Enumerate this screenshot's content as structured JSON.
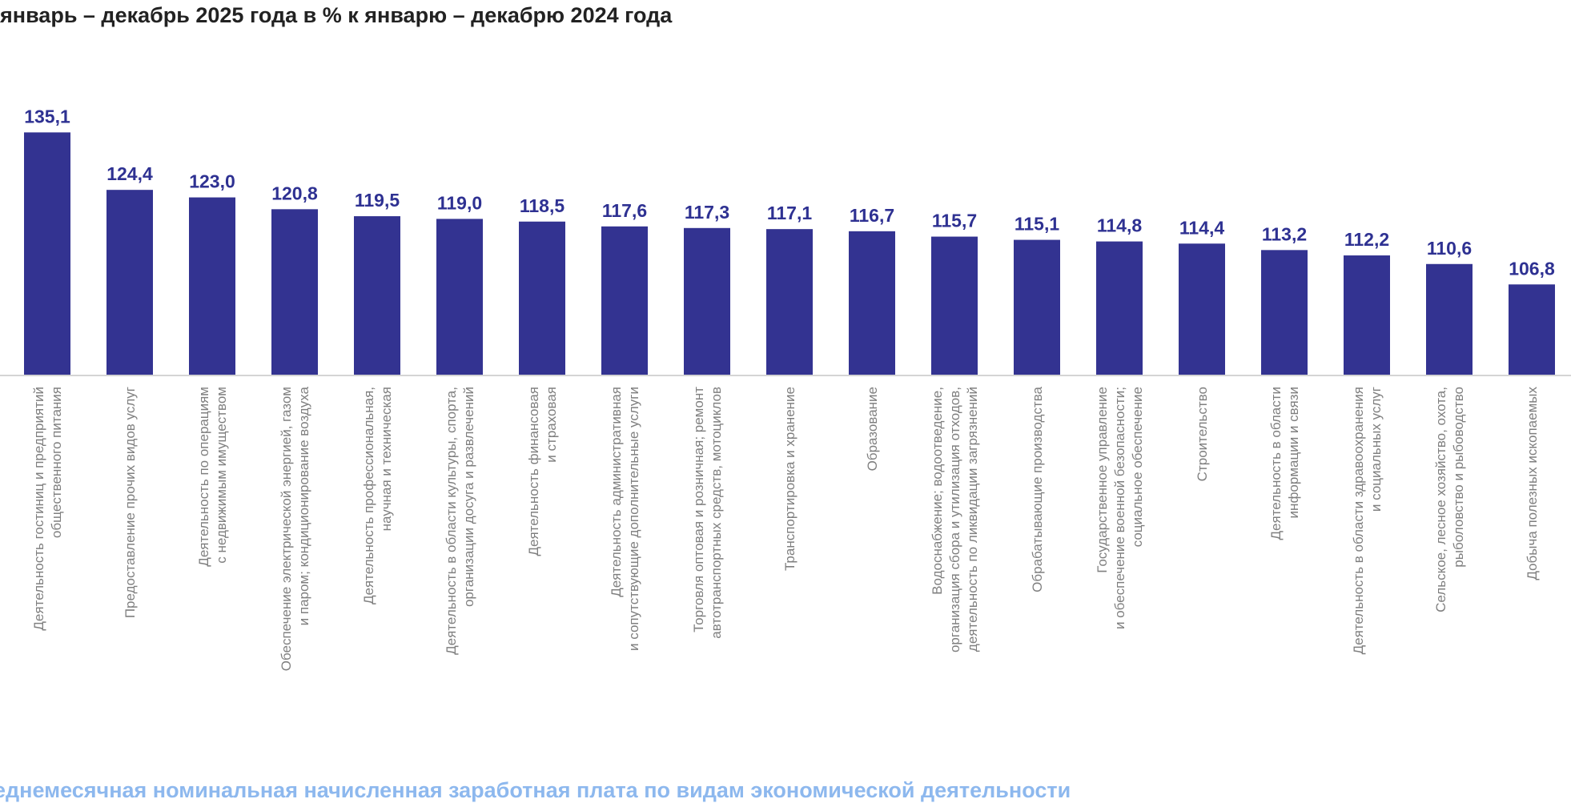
{
  "chart_data": {
    "type": "bar",
    "title": "январь – декабрь 2025 года в % к январю – декабрю 2024 года",
    "xlabel": "",
    "ylabel": "",
    "ylim": [
      90,
      140
    ],
    "grid": false,
    "bar_color": "#333391",
    "label_color": "#2e3192",
    "categories": [
      [
        "Деятельность гостиниц и предприятий",
        "общественного питания"
      ],
      [
        "Предоставление прочих видов услуг"
      ],
      [
        "Деятельность по операциям",
        "с недвижимым имуществом"
      ],
      [
        "Обеспечение электрической энергией, газом",
        "и паром; кондиционирование воздуха"
      ],
      [
        "Деятельность профессиональная,",
        "научная и техническая"
      ],
      [
        "Деятельность в области культуры, спорта,",
        "организации досуга и развлечений"
      ],
      [
        "Деятельность финансовая",
        "и страховая"
      ],
      [
        "Деятельность административная",
        "и сопутствующие дополнительные услуги"
      ],
      [
        "Торговля оптовая и розничная; ремонт",
        "автотранспортных средств, мотоциклов"
      ],
      [
        "Транспортировка и хранение"
      ],
      [
        "Образование"
      ],
      [
        "Водоснабжение; водоотведение,",
        "организация сбора и утилизация отходов,",
        "деятельность по ликвидации загрязнений"
      ],
      [
        "Обрабатывающие производства"
      ],
      [
        "Государственное управление",
        "и обеспечение военной безопасности;",
        "социальное обеспечение"
      ],
      [
        "Строительство"
      ],
      [
        "Деятельность в области",
        "информации и связи"
      ],
      [
        "Деятельность в области здравоохранения",
        "и социальных услуг"
      ],
      [
        "Сельское, лесное хозяйство, охота,",
        "рыболовство и рыбоводство"
      ],
      [
        "Добыча полезных ископаемых"
      ]
    ],
    "values": [
      135.1,
      124.4,
      123.0,
      120.8,
      119.5,
      119.0,
      118.5,
      117.6,
      117.3,
      117.1,
      116.7,
      115.7,
      115.1,
      114.8,
      114.4,
      113.2,
      112.2,
      110.6,
      106.8
    ],
    "value_labels": [
      "135,1",
      "124,4",
      "123,0",
      "120,8",
      "119,5",
      "119,0",
      "118,5",
      "117,6",
      "117,3",
      "117,1",
      "116,7",
      "115,7",
      "115,1",
      "114,8",
      "114,4",
      "113,2",
      "112,2",
      "110,6",
      "106,8"
    ]
  },
  "next_section_title": "Среднемесячная номинальная начисленная заработная плата по видам экономической деятельности"
}
